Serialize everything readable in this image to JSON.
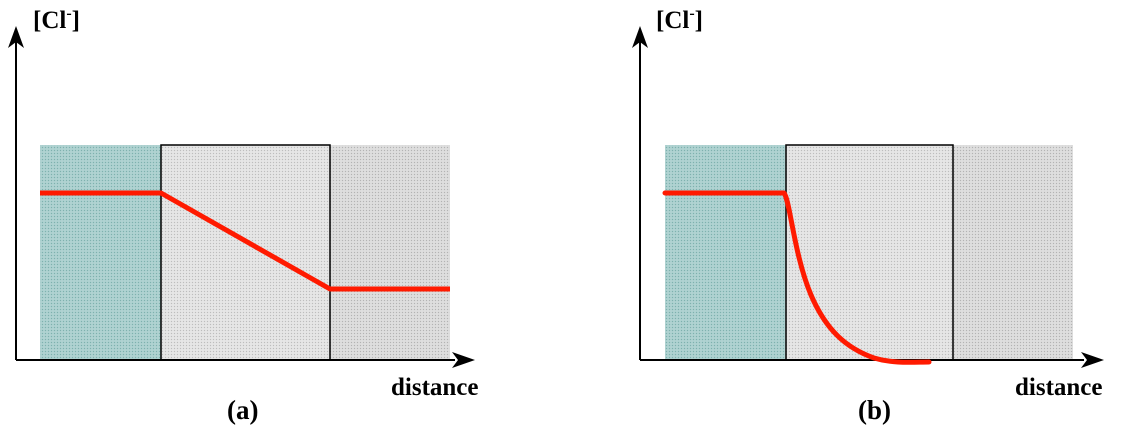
{
  "colors": {
    "region_left": "#9fc8c6",
    "region_middle": "#dcdcdc",
    "region_right": "#d6d6d6",
    "profile_line": "#ff1a00",
    "axis": "#000000"
  },
  "panels": [
    {
      "id": "a",
      "y_axis_label": {
        "main": "[Cl",
        "sup": "-",
        "close": "]"
      },
      "x_axis_label": "distance",
      "caption": "(a)",
      "profile": "linear"
    },
    {
      "id": "b",
      "y_axis_label": {
        "main": "[Cl",
        "sup": "-",
        "close": "]"
      },
      "x_axis_label": "distance",
      "caption": "(b)",
      "profile": "decaying"
    }
  ]
}
